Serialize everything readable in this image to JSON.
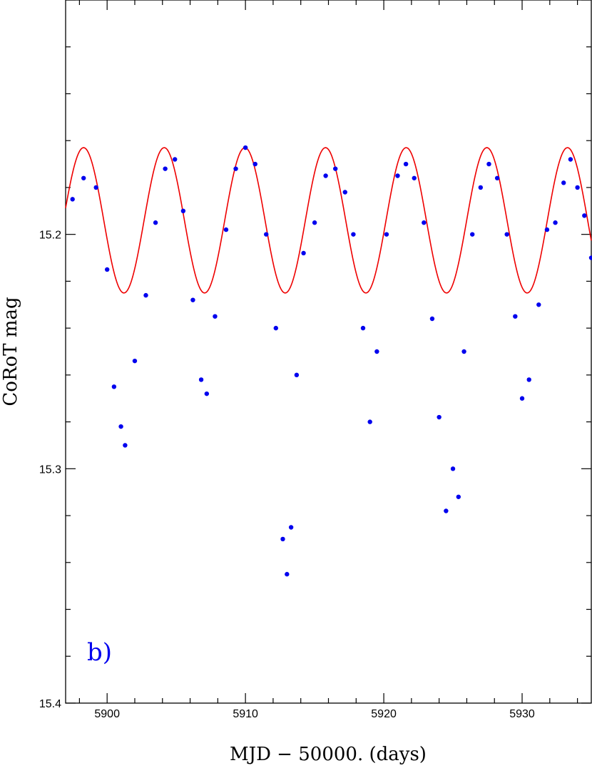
{
  "chart_data": {
    "type": "scatter",
    "xlabel": "MJD − 50000. (days)",
    "ylabel": "CoRoT mag",
    "annotation": "b)",
    "xlim": [
      5897,
      5935
    ],
    "ylim": [
      15.4,
      15.1
    ],
    "y_inverted": true,
    "x_ticks": [
      5900,
      5910,
      5920,
      5930
    ],
    "x_tick_labels": [
      "5900",
      "5910",
      "5920",
      "5930"
    ],
    "y_ticks": [
      15.2,
      15.3,
      15.4
    ],
    "y_tick_labels": [
      "15.2",
      "15.3",
      "15.4"
    ],
    "colors": {
      "observed": "#0000ee",
      "model": "#ee0000",
      "axes": "#000000"
    },
    "series": [
      {
        "style": "points",
        "x": [
          5897.5,
          5898.3,
          5899.2,
          5900.0,
          5900.5,
          5901.0,
          5901.3,
          5902.0,
          5902.8,
          5903.5,
          5904.2,
          5904.9,
          5905.5,
          5906.2,
          5906.8,
          5907.2,
          5907.8,
          5908.6,
          5909.3,
          5910.0,
          5910.7,
          5911.5,
          5912.2,
          5912.7,
          5913.0,
          5913.3,
          5913.7,
          5914.2,
          5915.0,
          5915.8,
          5916.5,
          5917.2,
          5917.8,
          5918.5,
          5919.0,
          5919.5,
          5920.2,
          5921.0,
          5921.6,
          5922.2,
          5922.9,
          5923.5,
          5924.0,
          5924.5,
          5925.0,
          5925.4,
          5925.8,
          5926.4,
          5927.0,
          5927.6,
          5928.2,
          5928.9,
          5929.5,
          5930.0,
          5930.5,
          5931.2,
          5931.8,
          5932.4,
          5933.0,
          5933.5,
          5934.0,
          5934.5,
          5935.0
        ],
        "y": [
          15.185,
          15.176,
          15.18,
          15.215,
          15.265,
          15.282,
          15.29,
          15.254,
          15.226,
          15.195,
          15.172,
          15.168,
          15.19,
          15.228,
          15.262,
          15.268,
          15.235,
          15.198,
          15.172,
          15.163,
          15.17,
          15.2,
          15.24,
          15.33,
          15.345,
          15.325,
          15.26,
          15.208,
          15.195,
          15.175,
          15.172,
          15.182,
          15.2,
          15.24,
          15.28,
          15.25,
          15.2,
          15.175,
          15.17,
          15.176,
          15.195,
          15.236,
          15.278,
          15.318,
          15.3,
          15.312,
          15.25,
          15.2,
          15.18,
          15.17,
          15.176,
          15.2,
          15.235,
          15.27,
          15.262,
          15.23,
          15.198,
          15.195,
          15.178,
          15.168,
          15.18,
          15.192,
          15.21
        ]
      },
      {
        "style": "line",
        "model": "sinusoid",
        "period_days": 5.83,
        "peak_x": 5898.3,
        "y_bright": 15.163,
        "y_faint": 15.225
      }
    ]
  }
}
